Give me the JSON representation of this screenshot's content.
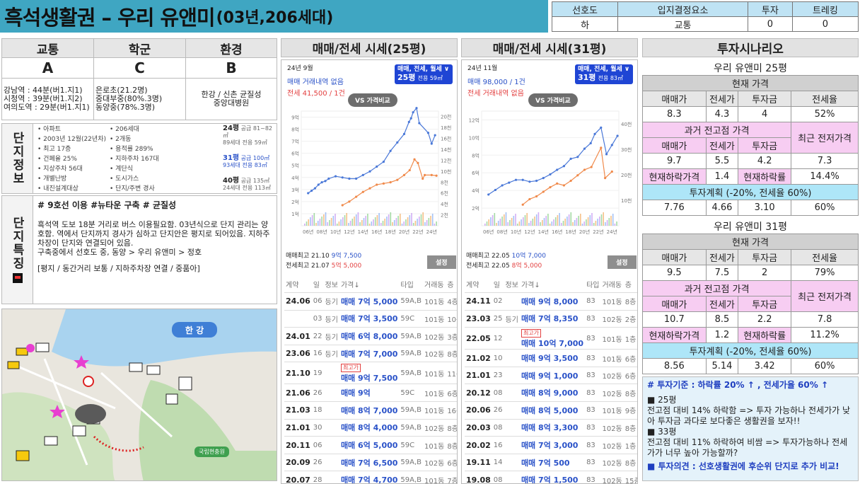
{
  "header": {
    "title_main": "흑석생활권 – 우리 유앤미",
    "title_sub": "(03년,206세대)"
  },
  "top_table": {
    "headers": [
      "선호도",
      "입지결정요소",
      "투자",
      "트레킹"
    ],
    "values": [
      "하",
      "교통",
      "0",
      "0"
    ]
  },
  "grades": {
    "headers": [
      "교통",
      "학군",
      "환경"
    ],
    "grades": [
      "A",
      "C",
      "B"
    ],
    "details": [
      [
        "강남역 : 44분(버1.지1)",
        "시청역 : 39분(버1.지2)",
        "여의도역 : 29분(버1.지1)"
      ],
      [
        "은로초(21.2명)",
        "중대부중(80%.3명)",
        "동양중(78%.3명)"
      ],
      [
        "한강 / 신촌 균질성",
        "중앙대병원"
      ]
    ]
  },
  "complex_info": {
    "label": "단지정보",
    "col1": [
      "아파트",
      "2003년 12월(22년차)",
      "최고 17층",
      "건폐율 25%",
      "지상주차 56대",
      "개별난방",
      "내진설계대상"
    ],
    "col2": [
      "206세대",
      "2개동",
      "용적률 289%",
      "지하주차 167대",
      "계단식",
      "도시가스",
      "단지/주변 경사"
    ],
    "sizes": [
      {
        "py": "24평",
        "supply": "공급 81~82㎡",
        "units": "89세대",
        "excl": "전용 59㎡"
      },
      {
        "py": "31평",
        "supply": "공급 100㎡",
        "units": "93세대",
        "excl": "전용 83㎡"
      },
      {
        "py": "40평",
        "supply": "공급 135㎡",
        "units": "24세대",
        "excl": "전용 113㎡"
      }
    ]
  },
  "complex_features": {
    "label": "단지특징",
    "hashtags": "# 9호선 이용 #뉴타운 구축 # 균질성",
    "body": "흑석역 도보 18분 거리로 버스 이용필요함. 03년식으로 단지 관리는 양호함. 역에서 단지까지 경사가 심하고 단지안은 평지로 되어있음. 지하주차장이 단지와 연결되어 있음.",
    "line2": "구축중에서 선호도 중, 동양 > 우리 유앤미 > 정호",
    "line3": "[평지 / 동간거리 보통 / 지하주차장 연결 / 중품아]"
  },
  "map": {
    "river_label": "한 강",
    "badge_label": "국립현충원"
  },
  "chart25": {
    "title": "매매/전세 시세(25평)",
    "date": "24년 9월",
    "line1": "매매 거래내역 없음",
    "line2": "전세 41,500 / 1건",
    "select_top": "매매, 전세, 월세 ∨",
    "select_size": "25평",
    "select_excl": "전용 59㎡",
    "vs": "VS 가격비교",
    "max_sale": "매매최고 21.10",
    "max_sale_val": "9억 7,500",
    "max_rent": "전세최고 21.07",
    "max_rent_val": "5억 5,000",
    "set_btn": "설정",
    "cols": [
      "계약",
      "일",
      "정보",
      "가격↓",
      "타입",
      "거래동",
      "층"
    ],
    "rows": [
      [
        "24.06",
        "06",
        "등기",
        "매매 7억 5,000",
        "59A,B",
        "101동",
        "4층",
        ""
      ],
      [
        "",
        "03",
        "등기",
        "매매 7억 3,500",
        "59C",
        "101동",
        "10층",
        ""
      ],
      [
        "24.01",
        "22",
        "등기",
        "매매 6억 8,000",
        "59A,B",
        "102동",
        "3층",
        ""
      ],
      [
        "23.06",
        "16",
        "등기",
        "매매 7억 7,000",
        "59A,B",
        "102동",
        "8층",
        ""
      ],
      [
        "21.10",
        "19",
        "",
        "매매 9억 7,500",
        "59A,B",
        "101동",
        "11층",
        "최고가"
      ],
      [
        "21.06",
        "26",
        "",
        "매매 9억",
        "59C",
        "101동",
        "6층",
        ""
      ],
      [
        "21.03",
        "18",
        "",
        "매매 8억 7,000",
        "59A,B",
        "101동",
        "16층",
        ""
      ],
      [
        "21.01",
        "30",
        "",
        "매매 8억 4,000",
        "59A,B",
        "102동",
        "8층",
        ""
      ],
      [
        "20.11",
        "06",
        "",
        "매매 6억 5,000",
        "59C",
        "101동",
        "8층",
        ""
      ],
      [
        "20.09",
        "26",
        "",
        "매매 7억 6,500",
        "59A,B",
        "102동",
        "6층",
        ""
      ],
      [
        "20.07",
        "28",
        "",
        "매매 7억 4,700",
        "59A,B",
        "101동",
        "7층",
        ""
      ]
    ],
    "chart_data": {
      "type": "line",
      "x_ticks": [
        "06년",
        "08년",
        "10년",
        "12년",
        "14년",
        "16년",
        "18년",
        "20년",
        "22년",
        "24년"
      ],
      "y_left": [
        "1억",
        "2억",
        "3억",
        "4억",
        "5억",
        "6억",
        "7억",
        "8억",
        "9억"
      ],
      "y_right": [
        "2천",
        "4천",
        "6천",
        "8천",
        "10천",
        "12천",
        "14천",
        "16천",
        "18천",
        "20천"
      ],
      "ylim": [
        0,
        9.5
      ],
      "series": [
        {
          "values": [
            [
              2006,
              2.7
            ],
            [
              2006.5,
              2.9
            ],
            [
              2007,
              3.1
            ],
            [
              2007.5,
              3.4
            ],
            [
              2008,
              3.6
            ],
            [
              2008.5,
              3.7
            ],
            [
              2009,
              3.9
            ],
            [
              2010,
              4.1
            ],
            [
              2011,
              4.0
            ],
            [
              2012,
              3.9
            ],
            [
              2013,
              3.9
            ],
            [
              2014,
              4.2
            ],
            [
              2015,
              4.5
            ],
            [
              2016,
              4.9
            ],
            [
              2017,
              5.3
            ],
            [
              2018,
              6.2
            ],
            [
              2019,
              6.9
            ],
            [
              2020,
              7.6
            ],
            [
              2020.7,
              8.6
            ],
            [
              2021,
              8.9
            ],
            [
              2021.3,
              9.4
            ],
            [
              2021.8,
              9.75
            ],
            [
              2022.2,
              8.5
            ],
            [
              2023.5,
              7.7
            ],
            [
              2024,
              6.8
            ],
            [
              2024.5,
              7.5
            ]
          ]
        },
        {
          "values": [
            [
              2011,
              1.7
            ],
            [
              2012,
              2.0
            ],
            [
              2013,
              2.4
            ],
            [
              2014,
              2.8
            ],
            [
              2015,
              3.1
            ],
            [
              2016,
              3.4
            ],
            [
              2017,
              3.5
            ],
            [
              2018,
              3.6
            ],
            [
              2019,
              3.8
            ],
            [
              2020,
              4.2
            ],
            [
              2020.8,
              4.6
            ],
            [
              2021.5,
              5.5
            ],
            [
              2022,
              5.2
            ],
            [
              2022.7,
              3.9
            ],
            [
              2023,
              4.2
            ],
            [
              2024,
              4.2
            ],
            [
              2024.7,
              4.15
            ]
          ]
        }
      ]
    }
  },
  "chart31": {
    "title": "매매/전세 시세(31평)",
    "date": "24년 11월",
    "line1": "매매 98,000 / 1건",
    "line2": "전세 거래내역 없음",
    "select_top": "매매, 전세, 월세 ∨",
    "select_size": "31평",
    "select_excl": "전용 83㎡",
    "vs": "VS 가격비교",
    "max_sale": "매매최고 22.05",
    "max_sale_val": "10억 7,000",
    "max_rent": "전세최고 22.05",
    "max_rent_val": "8억 5,000",
    "set_btn": "설정",
    "cols": [
      "계약",
      "일",
      "정보",
      "가격↓",
      "타입",
      "거래동",
      "층"
    ],
    "rows": [
      [
        "24.11",
        "02",
        "",
        "매매 9억 8,000",
        "83",
        "101동",
        "8층",
        ""
      ],
      [
        "23.03",
        "25",
        "등기",
        "매매 7억 8,350",
        "83",
        "102동",
        "2층",
        ""
      ],
      [
        "22.05",
        "12",
        "",
        "매매 10억 7,000",
        "83",
        "101동",
        "1층",
        "최고가"
      ],
      [
        "21.02",
        "10",
        "",
        "매매 9억 3,500",
        "83",
        "101동",
        "6층",
        ""
      ],
      [
        "21.01",
        "23",
        "",
        "매매 9억 1,000",
        "83",
        "102동",
        "6층",
        ""
      ],
      [
        "20.12",
        "08",
        "",
        "매매 8억 9,000",
        "83",
        "102동",
        "8층",
        ""
      ],
      [
        "20.06",
        "26",
        "",
        "매매 8억 5,000",
        "83",
        "101동",
        "9층",
        ""
      ],
      [
        "20.03",
        "08",
        "",
        "매매 8억 3,300",
        "83",
        "102동",
        "8층",
        ""
      ],
      [
        "20.02",
        "16",
        "",
        "매매 7억 3,000",
        "83",
        "102동",
        "1층",
        ""
      ],
      [
        "19.11",
        "14",
        "",
        "매매 7억 500",
        "83",
        "102동",
        "8층",
        ""
      ],
      [
        "19.08",
        "08",
        "",
        "매매 7억 1,500",
        "83",
        "102동",
        "15층",
        ""
      ]
    ],
    "chart_data": {
      "type": "line",
      "x_ticks": [
        "06년",
        "08년",
        "10년",
        "12년",
        "14년",
        "16년",
        "18년",
        "20년",
        "22년",
        "24년"
      ],
      "y_left": [
        "2억",
        "4억",
        "6억",
        "8억",
        "10억",
        "12억"
      ],
      "y_right": [
        "10천",
        "20천",
        "30천",
        "40천"
      ],
      "ylim": [
        0,
        12.5
      ],
      "series": [
        {
          "values": [
            [
              2006,
              3.4
            ],
            [
              2007,
              3.9
            ],
            [
              2008,
              4.4
            ],
            [
              2009,
              4.7
            ],
            [
              2010,
              5.0
            ],
            [
              2011,
              5.0
            ],
            [
              2012,
              4.8
            ],
            [
              2013,
              4.9
            ],
            [
              2014,
              5.2
            ],
            [
              2015,
              5.6
            ],
            [
              2016,
              6.1
            ],
            [
              2017,
              6.5
            ],
            [
              2018,
              7.3
            ],
            [
              2019,
              7.5
            ],
            [
              2020,
              8.4
            ],
            [
              2020.9,
              9.0
            ],
            [
              2021.5,
              10.0
            ],
            [
              2022.4,
              10.7
            ],
            [
              2023.2,
              7.8
            ],
            [
              2024,
              8.8
            ],
            [
              2024.8,
              9.8
            ]
          ]
        },
        {
          "values": [
            [
              2011,
              2.3
            ],
            [
              2012,
              2.9
            ],
            [
              2013,
              3.2
            ],
            [
              2014,
              3.7
            ],
            [
              2015,
              4.2
            ],
            [
              2016,
              4.6
            ],
            [
              2017,
              4.4
            ],
            [
              2018,
              4.9
            ],
            [
              2019,
              5.5
            ],
            [
              2020,
              6.1
            ],
            [
              2021,
              6.4
            ],
            [
              2022.4,
              8.5
            ],
            [
              2023,
              5.2
            ],
            [
              2024,
              5.9
            ]
          ]
        }
      ]
    }
  },
  "scenario": {
    "title": "투자시나리오",
    "s25": {
      "name": "우리 유앤미 25평",
      "current": "현재 가격",
      "h1": [
        "매매가",
        "전세가",
        "투자금",
        "전세율"
      ],
      "v1": [
        "8.3",
        "4.3",
        "4",
        "52%"
      ],
      "past": "과거 전고점 가격",
      "recent": "최근 전저가격",
      "h2": [
        "매매가",
        "전세가",
        "투자금"
      ],
      "v2": [
        "9.7",
        "5.5",
        "4.2",
        "7.3"
      ],
      "drop_label": "현재하락가격",
      "drop_val": "1.4",
      "rate_label": "현재하락률",
      "rate_val": "14.4%",
      "plan": "투자계획 (-20%, 전세율 60%)",
      "v3": [
        "7.76",
        "4.66",
        "3.10",
        "60%"
      ]
    },
    "s31": {
      "name": "우리 유앤미 31평",
      "current": "현재 가격",
      "h1": [
        "매매가",
        "전세가",
        "투자금",
        "전세율"
      ],
      "v1": [
        "9.5",
        "7.5",
        "2",
        "79%"
      ],
      "past": "과거 전고점 가격",
      "recent": "최근 전저가격",
      "h2": [
        "매매가",
        "전세가",
        "투자금"
      ],
      "v2": [
        "10.7",
        "8.5",
        "2.2",
        "7.8"
      ],
      "drop_label": "현재하락가격",
      "drop_val": "1.2",
      "rate_label": "현재하락률",
      "rate_val": "11.2%",
      "plan": "투자계획 (-20%, 전세율 60%)",
      "v3": [
        "8.56",
        "5.14",
        "3.42",
        "60%"
      ]
    },
    "criteria": "# 투자기준 : 하락률 20% ↑ , 전세가율 60% ↑",
    "p25_head": "■ 25평",
    "p25_body": "전고점 대비 14% 하락함 => 투자 가능하나 전세가가 낮아 투자금 과다로 보다좋은 생활권을 보자!!",
    "p33_head": "■ 33평",
    "p33_body": "전고점 대비 11% 하락하여 비쌈 => 투자가능하나 전세가가 너무 높아 가능할까?",
    "opinion": "■ 투자의견 : 선호생활권에 후순위 단지로 추가 비교!"
  },
  "colors": {
    "header_bg": "#3fa6c2",
    "sale_line": "#4a78d8",
    "rent_line": "#f08a4b",
    "pink": "#f7cdf2",
    "cyan": "#aee6f8"
  }
}
